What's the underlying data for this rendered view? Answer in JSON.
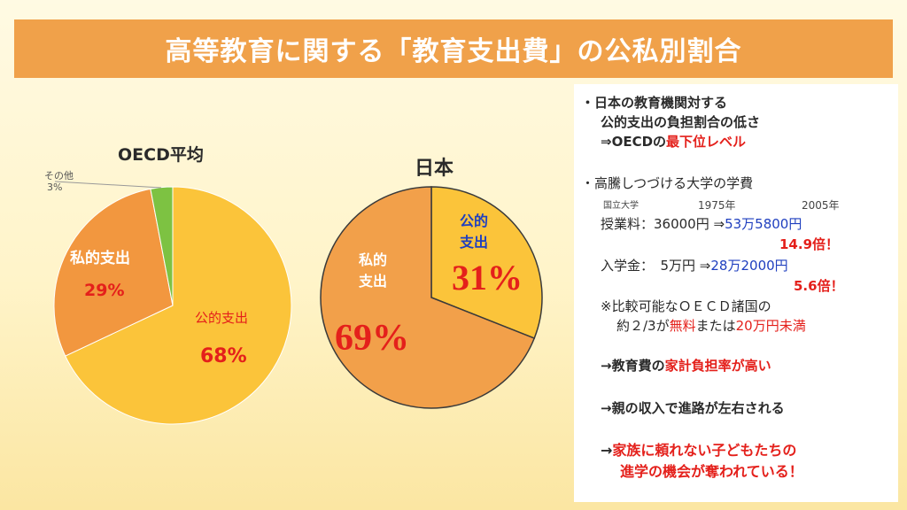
{
  "title": "高等教育に関する「教育支出費」の公私別割合",
  "colors": {
    "title_bar": "#f0a14a",
    "oecd_public": "#fbc43a",
    "oecd_private": "#f2973f",
    "oecd_other": "#7dc242",
    "japan_public": "#fbc43a",
    "japan_private": "#f2a04a",
    "accent_red": "#e4201b",
    "accent_blue": "#1f3fbf"
  },
  "chart_data": [
    {
      "type": "pie",
      "title": "OECD平均",
      "slices": [
        {
          "label": "公的支出",
          "value": 68,
          "value_label": "68%"
        },
        {
          "label": "私的支出",
          "value": 29,
          "value_label": "29%"
        },
        {
          "label": "その他",
          "value": 3,
          "value_label": "3%"
        }
      ]
    },
    {
      "type": "pie",
      "title": "日本",
      "slices": [
        {
          "label": "公的支出",
          "value": 31,
          "value_label": "31%"
        },
        {
          "label": "私的支出",
          "value": 69,
          "value_label": "69%"
        }
      ]
    }
  ],
  "pie_labels": {
    "oecd": {
      "private_label": "私的支出",
      "public_label": "公的支出",
      "other_label": "その他"
    },
    "japan": {
      "public_line1": "公的",
      "public_line2": "支出",
      "private_line1": "私的",
      "private_line2": "支出"
    }
  },
  "panel": {
    "p1_line1": "・日本の教育機関対する",
    "p1_line2": "公的支出の負担割合の低さ",
    "p1_line3_pre": "⇒OECDの",
    "p1_line3_red": "最下位レベル",
    "p2_heading": "・高騰しつづける大学の学費",
    "col_label": "国立大学",
    "year_1975": "1975年",
    "year_2005": "2005年",
    "tuition_label": "授業料：36000円 ⇒",
    "tuition_2005": "53万5800円",
    "tuition_mult": "14.9倍！",
    "entrance_label": "入学金：　5万円 ⇒",
    "entrance_2005": "28万2000円",
    "entrance_mult": "5.6倍！",
    "note_line1": "※比較可能なＯＥＣＤ諸国の",
    "note_l2_a": "約２/3が",
    "note_l2_b": "無料",
    "note_l2_c": "または",
    "note_l2_d": "20万円未満",
    "arrow1_a": "→教育費の",
    "arrow1_b": "家計負担率が高い",
    "arrow2": "→親の収入で進路が左右される",
    "arrow3_a": "→",
    "arrow3_b": "家族に頼れない子どもたちの",
    "arrow3_line2": "進学の機会が奪われている！"
  }
}
